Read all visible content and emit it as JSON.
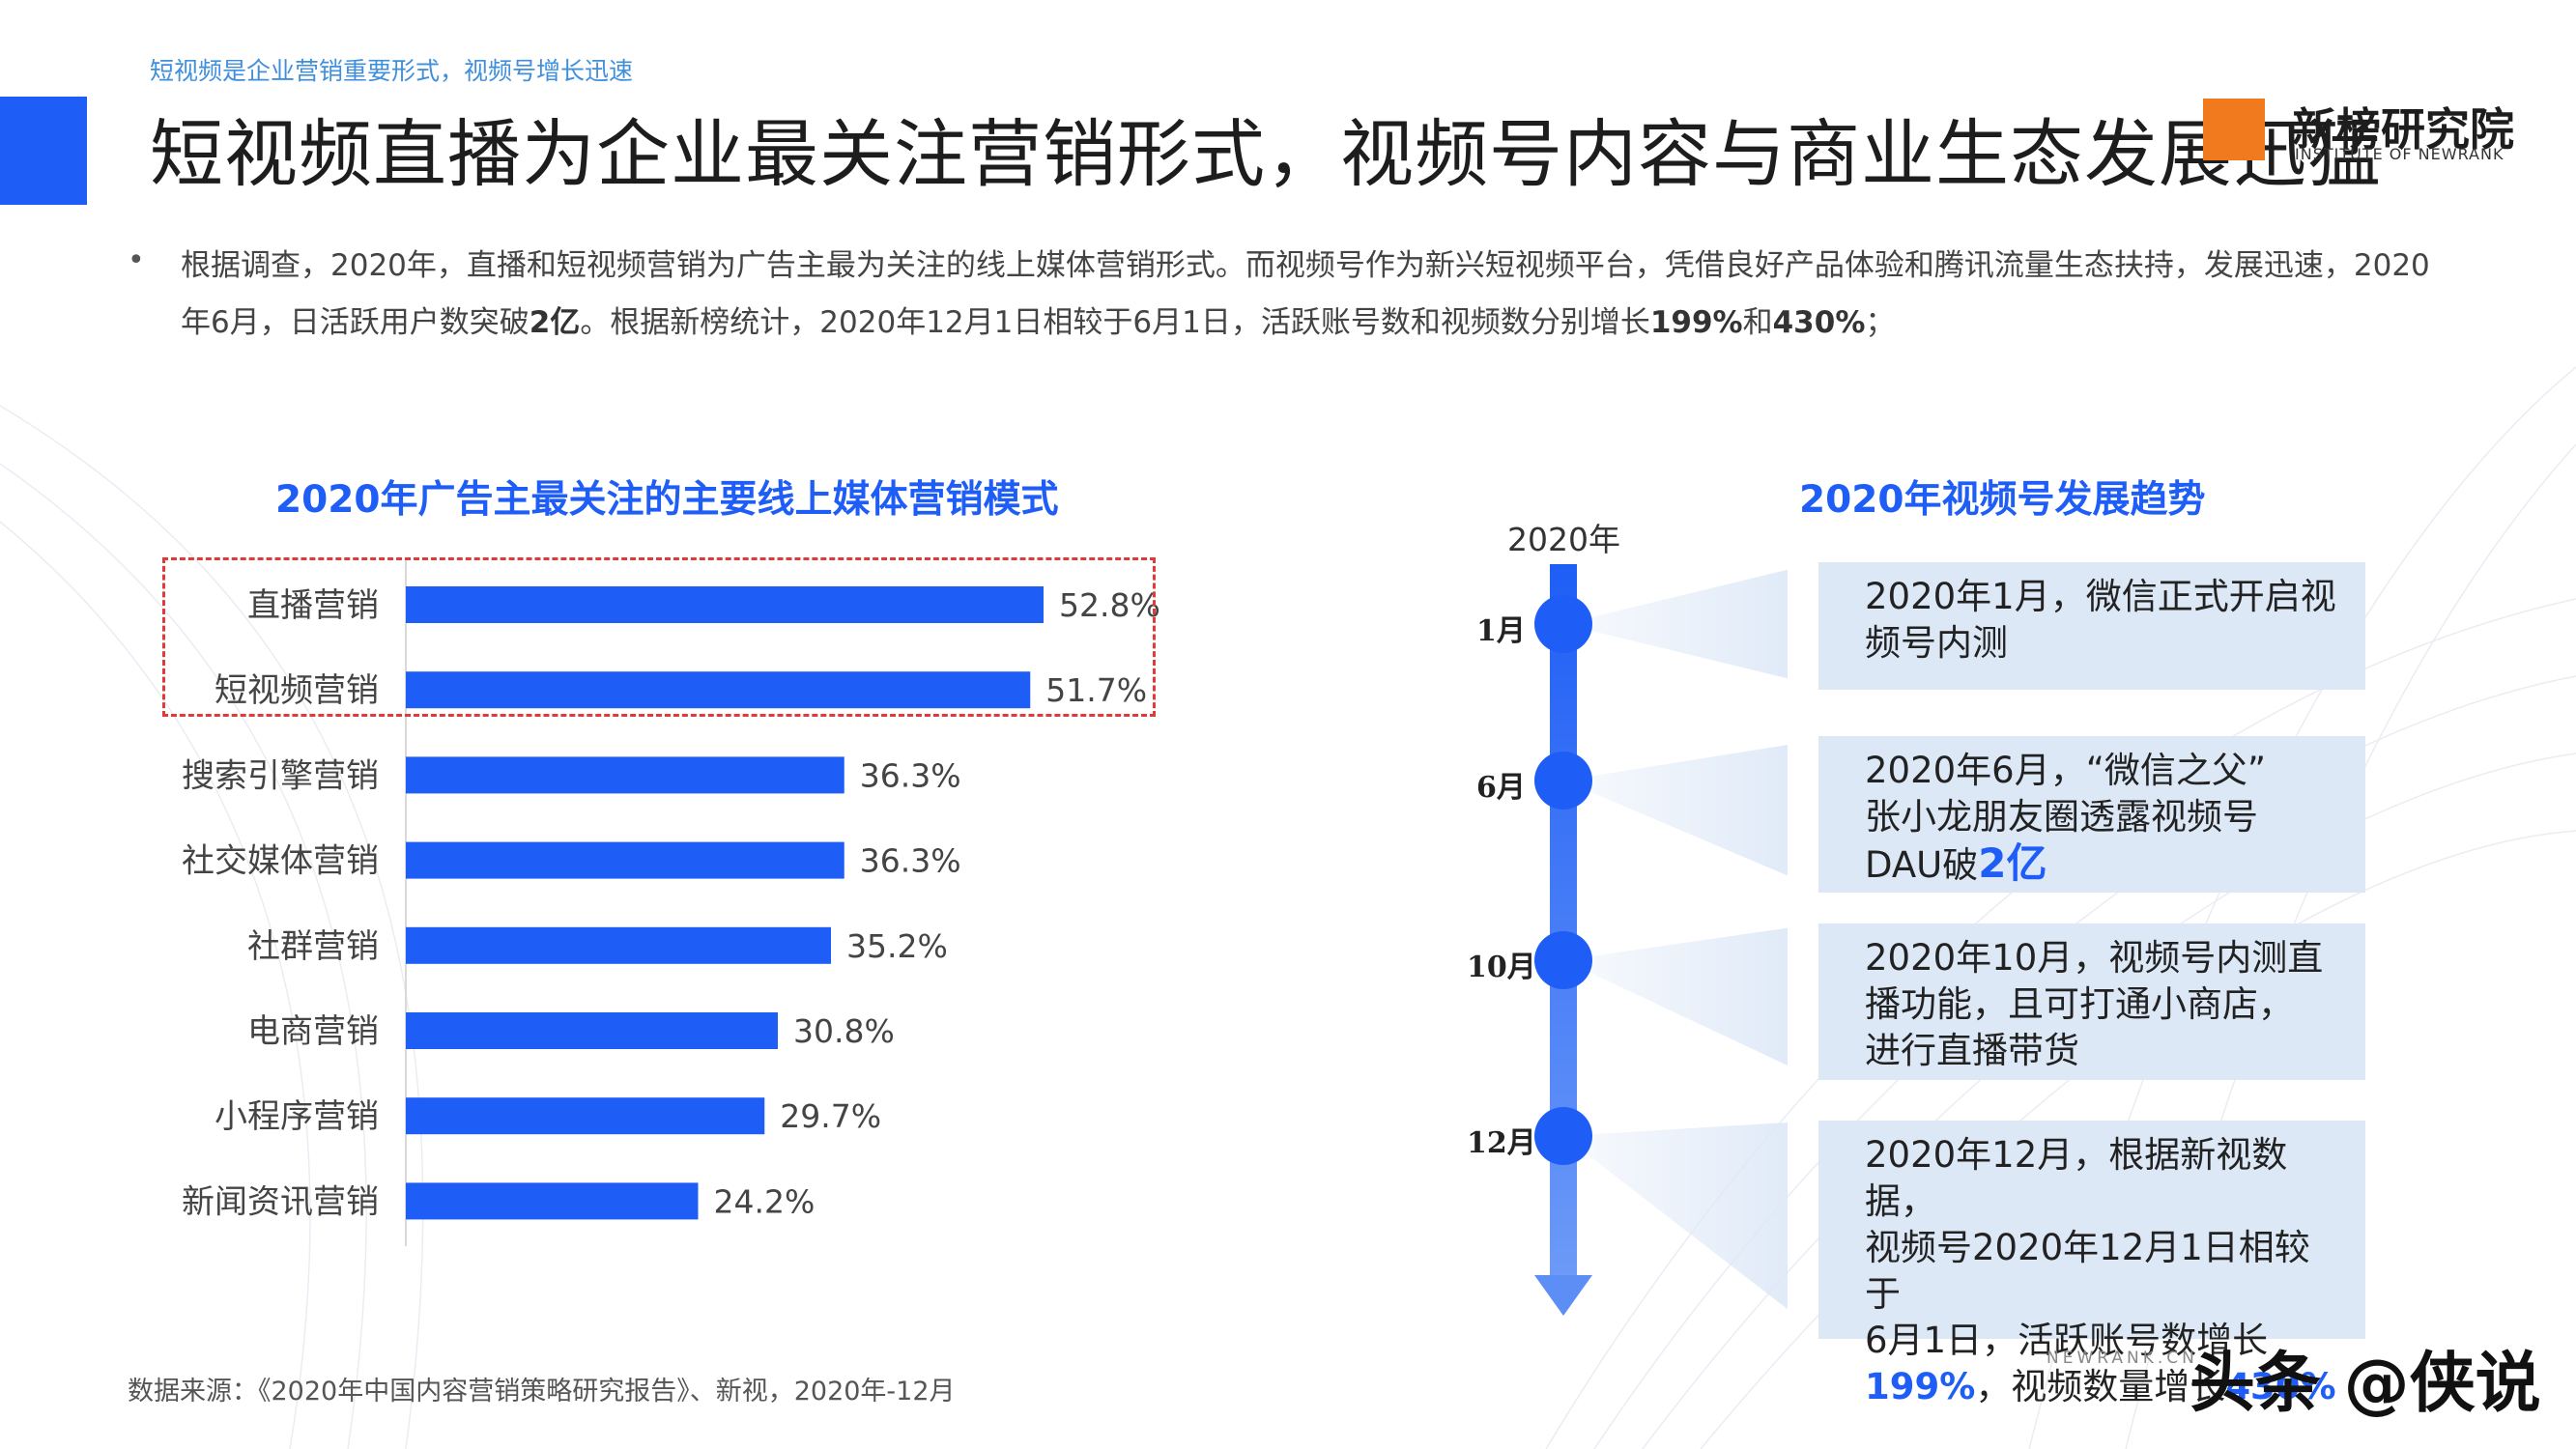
{
  "header": {
    "tag": "短视频是企业营销重要形式，视频号增长迅速",
    "title": "短视频直播为企业最关注营销形式，视频号内容与商业生态发展迅猛"
  },
  "logo": {
    "name": "新榜研究院",
    "en": "INSTITUTE OF NEWRANK"
  },
  "description": {
    "bullet": "•",
    "part1": "根据调查，2020年，直播和短视频营销为广告主最为关注的线上媒体营销形式。而视频号作为新兴短视频平台，凭借良好产品体验和腾讯流量生态扶持，发展迅速，2020年6月，日活跃用户数突破",
    "b1": "2亿",
    "part2": "。根据新榜统计，2020年12月1日相较于6月1日，活跃账号数和视频数分别增长",
    "b2": "199%",
    "part3": "和",
    "b3": "430%",
    "part4": "；"
  },
  "chart_data": {
    "type": "bar",
    "orientation": "horizontal",
    "title": "2020年广告主最关注的主要线上媒体营销模式",
    "categories": [
      "直播营销",
      "短视频营销",
      "搜索引擎营销",
      "社交媒体营销",
      "社群营销",
      "电商营销",
      "小程序营销",
      "新闻资讯营销"
    ],
    "values": [
      52.8,
      51.7,
      36.3,
      36.3,
      35.2,
      30.8,
      29.7,
      24.2
    ],
    "value_labels": [
      "52.8%",
      "51.7%",
      "36.3%",
      "36.3%",
      "35.2%",
      "30.8%",
      "29.7%",
      "24.2%"
    ],
    "unit": "%",
    "xlim": [
      0,
      60
    ],
    "highlighted": [
      "直播营销",
      "短视频营销"
    ],
    "bar_color": "#1f5ef6",
    "highlight_border_color": "#e03a3a",
    "grid": false
  },
  "timeline": {
    "title": "2020年视频号发展趋势",
    "year": "2020年",
    "events": [
      {
        "month": "1月",
        "lines": [
          "2020年1月，微信正式开启视",
          "频号内测"
        ]
      },
      {
        "month": "6月",
        "lines": [
          "2020年6月，“微信之父”",
          "张小龙朋友圈透露视频号"
        ],
        "last_pre": "DAU破",
        "last_hl": "2亿"
      },
      {
        "month": "10月",
        "lines": [
          "2020年10月，视频号内测直",
          "播功能，且可打通小商店，",
          "进行直播带货"
        ]
      },
      {
        "month": "12月",
        "lines": [
          "2020年12月，根据新视数据，",
          "视频号2020年12月1日相较于",
          "6月1日，活跃账号数增长"
        ],
        "last_hl1": "199%",
        "last_mid": "，视频数量增长",
        "last_hl2": "430%"
      }
    ]
  },
  "footer": {
    "source": "数据来源：《2020年中国内容营销策略研究报告》、新视，2020年-12月",
    "url": "NEWRANK.CN",
    "watermark": "头条 @侠说"
  },
  "colors": {
    "accent": "#1f5ef6",
    "logo": "#f07a1d",
    "card": "#dde8f7",
    "dash": "#e03a3a"
  }
}
